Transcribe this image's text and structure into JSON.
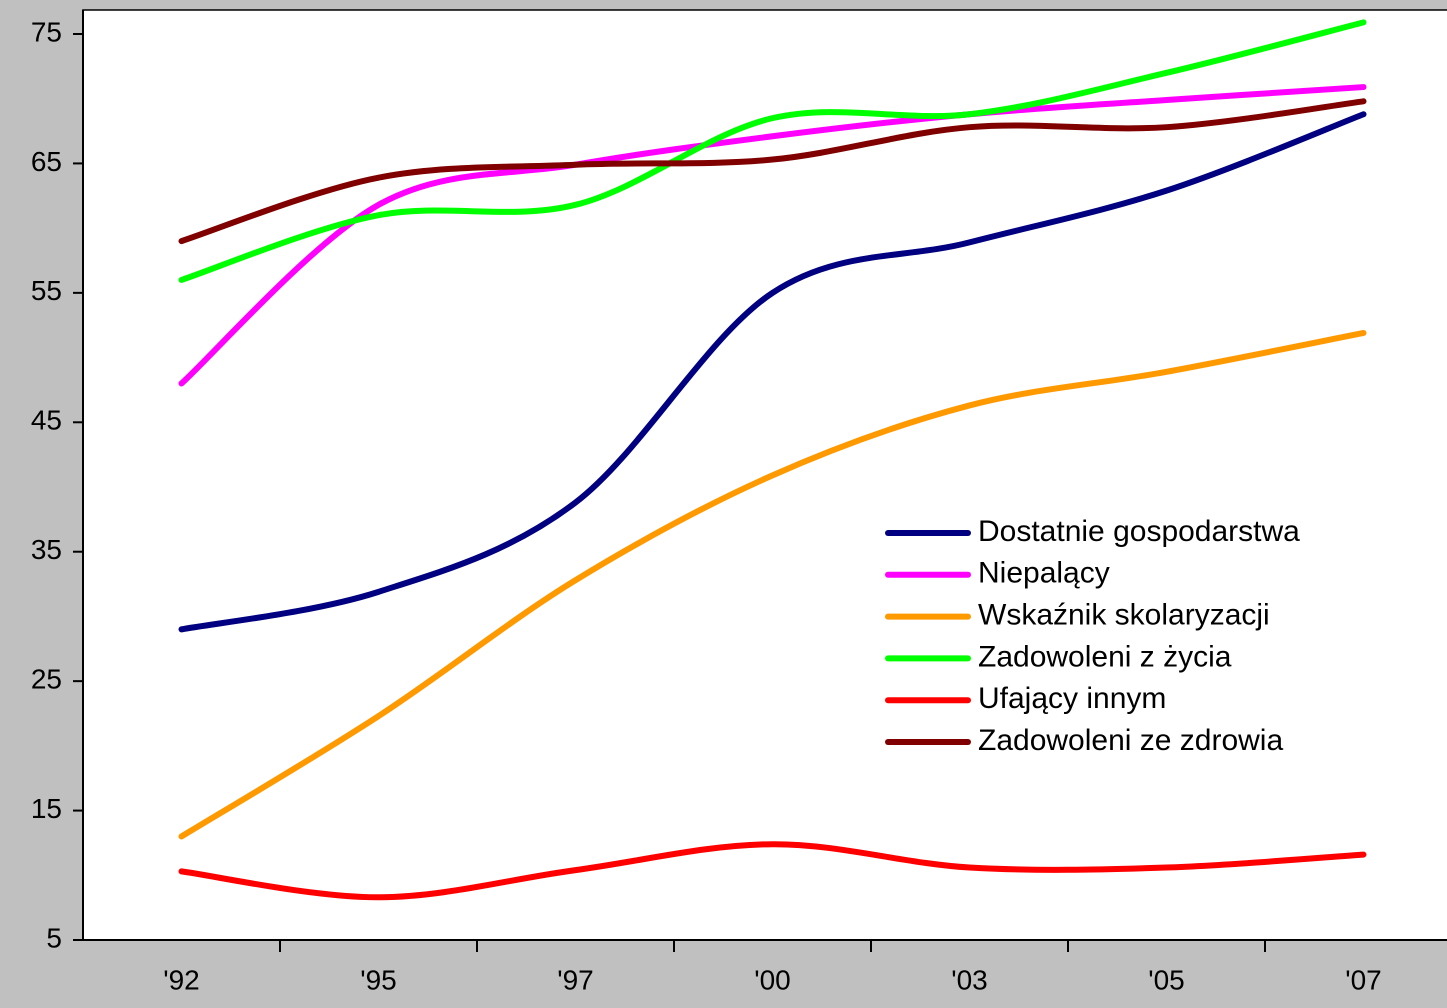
{
  "chart_data": {
    "type": "line",
    "smooth": true,
    "categories": [
      "'92",
      "'95",
      "'97",
      "'00",
      "'03",
      "'05",
      "'07"
    ],
    "series": [
      {
        "name": "Dostatnie gospodarstwa",
        "color": "#000080",
        "values": [
          29,
          31.9,
          38.8,
          55,
          58.9,
          62.9,
          68.8
        ]
      },
      {
        "name": "Niepalący",
        "color": "#ff00ff",
        "values": [
          48,
          61.8,
          64.9,
          67.1,
          68.8,
          69.9,
          70.9
        ]
      },
      {
        "name": "Wskaźnik skolaryzacji",
        "color": "#ff9900",
        "values": [
          13,
          22.3,
          32.8,
          40.9,
          46.3,
          48.9,
          51.9
        ]
      },
      {
        "name": "Zadowoleni z życia",
        "color": "#00ff00",
        "values": [
          56,
          61,
          61.8,
          68.5,
          68.8,
          72,
          75.9
        ]
      },
      {
        "name": "Ufający innym",
        "color": "#ff0000",
        "values": [
          10.3,
          8.3,
          10.4,
          12.4,
          10.6,
          10.6,
          11.6
        ]
      },
      {
        "name": "Zadowoleni ze zdrowia",
        "color": "#800000",
        "values": [
          59,
          63.9,
          64.9,
          65.3,
          67.8,
          67.8,
          69.8
        ]
      }
    ],
    "ylim": [
      5,
      75
    ],
    "yticks": [
      5,
      15,
      25,
      35,
      45,
      55,
      65,
      75
    ],
    "grid": false,
    "legend": "right"
  }
}
